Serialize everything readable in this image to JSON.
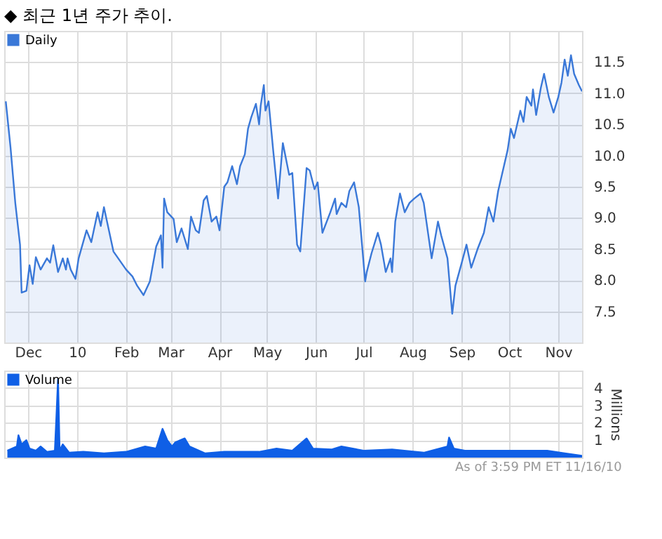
{
  "chart_data": [
    {
      "type": "area",
      "title": "◆ 최근 1년 주가 추이.",
      "legend": "top left",
      "grid": true,
      "xlim": [
        "2009-11-16",
        "2010-11-16"
      ],
      "xticks": [
        {
          "value": "2009-12-01",
          "label": "Dec"
        },
        {
          "value": "2010-01-01",
          "label": "10"
        },
        {
          "value": "2010-02-01",
          "label": "Feb"
        },
        {
          "value": "2010-03-01",
          "label": "Mar"
        },
        {
          "value": "2010-04-01",
          "label": "Apr"
        },
        {
          "value": "2010-05-01",
          "label": "May"
        },
        {
          "value": "2010-06-01",
          "label": "Jun"
        },
        {
          "value": "2010-07-01",
          "label": "Jul"
        },
        {
          "value": "2010-08-01",
          "label": "Aug"
        },
        {
          "value": "2010-09-01",
          "label": "Sep"
        },
        {
          "value": "2010-10-01",
          "label": "Oct"
        },
        {
          "value": "2010-11-01",
          "label": "Nov"
        }
      ],
      "ylim": [
        7,
        12
      ],
      "yticks": [
        {
          "value": 7.5,
          "label": "7.5"
        },
        {
          "value": 8,
          "label": "8.0"
        },
        {
          "value": 8.5,
          "label": "8.5"
        },
        {
          "value": 9,
          "label": "9.0"
        },
        {
          "value": 9.5,
          "label": "9.5"
        },
        {
          "value": 10,
          "label": "10.0"
        },
        {
          "value": 10.5,
          "label": "10.5"
        },
        {
          "value": 11,
          "label": "11.0"
        },
        {
          "value": 11.5,
          "label": "11.5"
        }
      ],
      "series": [
        {
          "name": "Daily",
          "color": "#3a78d8",
          "x": [
            "2009-11-17",
            "2009-11-20",
            "2009-11-23",
            "2009-11-26",
            "2009-11-27",
            "2009-11-30",
            "2009-12-02",
            "2009-12-04",
            "2009-12-06",
            "2009-12-09",
            "2009-12-13",
            "2009-12-15",
            "2009-12-17",
            "2009-12-20",
            "2009-12-23",
            "2009-12-25",
            "2009-12-26",
            "2009-12-28",
            "2009-12-31",
            "2010-01-02",
            "2010-01-07",
            "2010-01-10",
            "2010-01-14",
            "2010-01-16",
            "2010-01-18",
            "2010-01-24",
            "2010-02-01",
            "2010-02-05",
            "2010-02-08",
            "2010-02-12",
            "2010-02-16",
            "2010-02-20",
            "2010-02-23",
            "2010-02-24",
            "2010-02-25",
            "2010-02-27",
            "2010-03-03",
            "2010-03-05",
            "2010-03-08",
            "2010-03-12",
            "2010-03-14",
            "2010-03-17",
            "2010-03-19",
            "2010-03-22",
            "2010-03-24",
            "2010-03-27",
            "2010-03-30",
            "2010-04-01",
            "2010-04-04",
            "2010-04-06",
            "2010-04-09",
            "2010-04-12",
            "2010-04-14",
            "2010-04-17",
            "2010-04-19",
            "2010-04-21",
            "2010-04-24",
            "2010-04-26",
            "2010-04-27",
            "2010-04-29",
            "2010-04-30",
            "2010-05-02",
            "2010-05-05",
            "2010-05-08",
            "2010-05-11",
            "2010-05-15",
            "2010-05-17",
            "2010-05-20",
            "2010-05-22",
            "2010-05-26",
            "2010-05-28",
            "2010-05-31",
            "2010-06-02",
            "2010-06-05",
            "2010-06-10",
            "2010-06-13",
            "2010-06-14",
            "2010-06-17",
            "2010-06-20",
            "2010-06-22",
            "2010-06-25",
            "2010-06-28",
            "2010-07-02",
            "2010-07-03",
            "2010-07-06",
            "2010-07-10",
            "2010-07-12",
            "2010-07-15",
            "2010-07-18",
            "2010-07-19",
            "2010-07-21",
            "2010-07-24",
            "2010-07-27",
            "2010-07-30",
            "2010-08-02",
            "2010-08-06",
            "2010-08-08",
            "2010-08-13",
            "2010-08-17",
            "2010-08-19",
            "2010-08-23",
            "2010-08-26",
            "2010-08-28",
            "2010-09-01",
            "2010-09-04",
            "2010-09-07",
            "2010-09-11",
            "2010-09-15",
            "2010-09-18",
            "2010-09-21",
            "2010-09-24",
            "2010-09-27",
            "2010-09-30",
            "2010-10-02",
            "2010-10-04",
            "2010-10-08",
            "2010-10-10",
            "2010-10-12",
            "2010-10-15",
            "2010-10-16",
            "2010-10-18",
            "2010-10-21",
            "2010-10-23",
            "2010-10-26",
            "2010-10-29",
            "2010-11-01",
            "2010-11-03",
            "2010-11-05",
            "2010-11-07",
            "2010-11-09",
            "2010-11-11",
            "2010-11-14",
            "2010-11-16"
          ],
          "values": [
            10.87,
            10.13,
            9.24,
            8.57,
            7.8,
            7.83,
            8.24,
            7.94,
            8.37,
            8.17,
            8.35,
            8.28,
            8.56,
            8.13,
            8.35,
            8.17,
            8.35,
            8.17,
            8.02,
            8.35,
            8.8,
            8.61,
            9.09,
            8.87,
            9.17,
            8.46,
            8.17,
            8.06,
            7.91,
            7.76,
            7.98,
            8.54,
            8.72,
            8.2,
            9.31,
            9.09,
            8.98,
            8.61,
            8.83,
            8.5,
            9.02,
            8.8,
            8.76,
            9.28,
            9.35,
            8.94,
            9.02,
            8.8,
            9.5,
            9.57,
            9.83,
            9.54,
            9.83,
            10.02,
            10.43,
            10.61,
            10.83,
            10.5,
            10.8,
            11.13,
            10.72,
            10.87,
            10.06,
            9.31,
            10.2,
            9.69,
            9.72,
            8.57,
            8.46,
            9.8,
            9.76,
            9.46,
            9.57,
            8.76,
            9.09,
            9.31,
            9.06,
            9.24,
            9.17,
            9.43,
            9.57,
            9.17,
            7.98,
            8.13,
            8.43,
            8.76,
            8.57,
            8.13,
            8.35,
            8.13,
            8.94,
            9.39,
            9.09,
            9.24,
            9.31,
            9.39,
            9.24,
            8.35,
            8.94,
            8.72,
            8.35,
            7.46,
            7.91,
            8.28,
            8.57,
            8.2,
            8.5,
            8.76,
            9.17,
            8.94,
            9.43,
            9.76,
            10.09,
            10.43,
            10.28,
            10.72,
            10.54,
            10.94,
            10.8,
            11.06,
            10.65,
            11.09,
            11.31,
            10.94,
            10.69,
            10.94,
            11.17,
            11.54,
            11.28,
            11.61,
            11.31,
            11.13,
            11.03
          ]
        }
      ]
    },
    {
      "type": "area",
      "legend": "top left",
      "grid": true,
      "tick_labels": "y",
      "ylabel": "Millions",
      "xlim": [
        "2009-11-16",
        "2010-11-16"
      ],
      "xticks": [
        {
          "value": "2009-12-01",
          "label": null
        },
        {
          "value": "2010-01-01",
          "label": null
        },
        {
          "value": "2010-02-01",
          "label": null
        },
        {
          "value": "2010-03-01",
          "label": null
        },
        {
          "value": "2010-04-01",
          "label": null
        },
        {
          "value": "2010-05-01",
          "label": null
        },
        {
          "value": "2010-06-01",
          "label": null
        },
        {
          "value": "2010-07-01",
          "label": null
        },
        {
          "value": "2010-08-01",
          "label": null
        },
        {
          "value": "2010-09-01",
          "label": null
        },
        {
          "value": "2010-10-01",
          "label": null
        },
        {
          "value": "2010-11-01",
          "label": null
        }
      ],
      "ylim": [
        0,
        5
      ],
      "yticks": [
        1,
        2,
        3,
        4
      ],
      "annotations": [
        "As of 3:59 PM ET 11/16/10"
      ],
      "series": [
        {
          "name": "Volume",
          "color": "#0f5fe6",
          "x": [
            "2009-11-18",
            "2009-11-24",
            "2009-11-25",
            "2009-11-27",
            "2009-11-30",
            "2009-12-02",
            "2009-12-06",
            "2009-12-09",
            "2009-12-13",
            "2009-12-18",
            "2009-12-19",
            "2009-12-20",
            "2009-12-21",
            "2009-12-23",
            "2009-12-27",
            "2010-01-05",
            "2010-01-18",
            "2010-02-01",
            "2010-02-13",
            "2010-02-20",
            "2010-02-24",
            "2010-02-27",
            "2010-03-02",
            "2010-03-04",
            "2010-03-10",
            "2010-03-13",
            "2010-03-23",
            "2010-04-04",
            "2010-04-26",
            "2010-05-07",
            "2010-05-17",
            "2010-05-26",
            "2010-05-30",
            "2010-06-11",
            "2010-06-17",
            "2010-07-01",
            "2010-07-19",
            "2010-08-08",
            "2010-08-23",
            "2010-08-24",
            "2010-08-27",
            "2010-09-03",
            "2010-09-20",
            "2010-10-08",
            "2010-10-25",
            "2010-11-05",
            "2010-11-16"
          ],
          "values": [
            0.4,
            0.64,
            1.28,
            0.76,
            1.0,
            0.52,
            0.4,
            0.64,
            0.33,
            0.4,
            2.4,
            4.5,
            0.4,
            0.76,
            0.28,
            0.33,
            0.24,
            0.33,
            0.64,
            0.52,
            1.65,
            1.0,
            0.64,
            0.87,
            1.1,
            0.64,
            0.24,
            0.33,
            0.33,
            0.52,
            0.4,
            1.1,
            0.52,
            0.47,
            0.64,
            0.4,
            0.47,
            0.28,
            0.64,
            1.15,
            0.52,
            0.4,
            0.4,
            0.4,
            0.4,
            0.24,
            0.1
          ]
        }
      ]
    }
  ]
}
